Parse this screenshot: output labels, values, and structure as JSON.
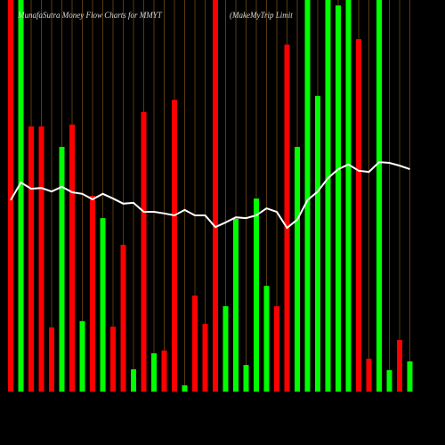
{
  "chart_data": {
    "type": "bar",
    "title": "MunafaSutra  Money Flow  Charts for MMYT",
    "subtitle": "(MakeMyTrip Limit",
    "ylim": [
      0,
      100
    ],
    "grid": true,
    "bars": {
      "values": [
        100,
        100,
        67.7,
        67.7,
        16.4,
        62.5,
        68.2,
        18.0,
        50,
        44.3,
        16.6,
        37.5,
        5.7,
        71.4,
        9.8,
        10.5,
        74.5,
        1.6,
        24.5,
        17.3,
        100,
        21.8,
        44.1,
        6.8,
        49.3,
        27,
        21.8,
        88.6,
        62.5,
        100,
        75.5,
        100,
        98.6,
        100,
        90,
        8.4,
        100,
        5.5,
        13.2,
        7.7
      ],
      "colors": [
        "#ff0000",
        "#00ff00",
        "#ff0000",
        "#ff0000",
        "#ff0000",
        "#00ff00",
        "#ff0000",
        "#00ff00",
        "#ff0000",
        "#00ff00",
        "#ff0000",
        "#ff0000",
        "#00ff00",
        "#ff0000",
        "#00ff00",
        "#ff0000",
        "#ff0000",
        "#00ff00",
        "#ff0000",
        "#ff0000",
        "#ff0000",
        "#00ff00",
        "#00ff00",
        "#00ff00",
        "#00ff00",
        "#00ff00",
        "#ff0000",
        "#ff0000",
        "#00ff00",
        "#00ff00",
        "#00ff00",
        "#00ff00",
        "#00ff00",
        "#00ff00",
        "#ff0000",
        "#ff0000",
        "#00ff00",
        "#00ff00",
        "#ff0000",
        "#00ff00"
      ]
    },
    "line": {
      "color": "#ffffff",
      "values": [
        48.9,
        53.4,
        51.8,
        52.0,
        51.1,
        52.3,
        50.9,
        50.5,
        49.1,
        50.5,
        49.3,
        48.0,
        48.2,
        45.9,
        45.9,
        45.5,
        45.0,
        46.4,
        45.0,
        45.0,
        42.0,
        43.2,
        44.5,
        44.3,
        45.0,
        46.8,
        45.9,
        41.8,
        43.9,
        48.9,
        51.1,
        54.5,
        56.8,
        58.0,
        56.4,
        56.1,
        58.6,
        58.4,
        57.7,
        56.8
      ]
    }
  }
}
